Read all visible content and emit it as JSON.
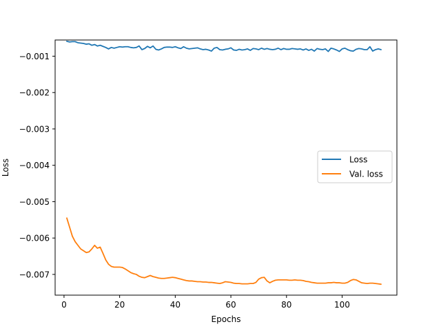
{
  "chart_data": {
    "type": "line",
    "title": "",
    "xlabel": "Epochs",
    "ylabel": "Loss",
    "xlim": [
      -3.2,
      119.7
    ],
    "ylim": [
      -0.00757,
      -0.000555
    ],
    "xticks": [
      {
        "value": 0,
        "label": "0"
      },
      {
        "value": 20,
        "label": "20"
      },
      {
        "value": 40,
        "label": "40"
      },
      {
        "value": 60,
        "label": "60"
      },
      {
        "value": 80,
        "label": "80"
      },
      {
        "value": 100,
        "label": "100"
      }
    ],
    "yticks": [
      {
        "value": -0.001,
        "label": "−0.001"
      },
      {
        "value": -0.002,
        "label": "−0.002"
      },
      {
        "value": -0.003,
        "label": "−0.003"
      },
      {
        "value": -0.004,
        "label": "−0.004"
      },
      {
        "value": -0.005,
        "label": "−0.005"
      },
      {
        "value": -0.006,
        "label": "−0.006"
      },
      {
        "value": -0.007,
        "label": "−0.007"
      }
    ],
    "grid": false,
    "legend_position": "center-right",
    "series": [
      {
        "name": "Loss",
        "color": "#1f77b4",
        "x": [
          1,
          2,
          3,
          4,
          5,
          6,
          7,
          8,
          9,
          10,
          11,
          12,
          13,
          14,
          15,
          16,
          17,
          18,
          19,
          20,
          21,
          22,
          23,
          24,
          25,
          26,
          27,
          28,
          29,
          30,
          31,
          32,
          33,
          34,
          35,
          36,
          37,
          38,
          39,
          40,
          41,
          42,
          43,
          44,
          45,
          46,
          47,
          48,
          49,
          50,
          51,
          52,
          53,
          54,
          55,
          56,
          57,
          58,
          59,
          60,
          61,
          62,
          63,
          64,
          65,
          66,
          67,
          68,
          69,
          70,
          71,
          72,
          73,
          74,
          75,
          76,
          77,
          78,
          79,
          80,
          81,
          82,
          83,
          84,
          85,
          86,
          87,
          88,
          89,
          90,
          91,
          92,
          93,
          94,
          95,
          96,
          97,
          98,
          99,
          100,
          101,
          102,
          103,
          104,
          105,
          106,
          107,
          108,
          109,
          110,
          111,
          112,
          113,
          114
        ],
        "values": [
          -0.00059,
          -0.00061,
          -0.0006,
          -0.0006,
          -0.00063,
          -0.00064,
          -0.00065,
          -0.00067,
          -0.00066,
          -0.0007,
          -0.00068,
          -0.00072,
          -0.0007,
          -0.00073,
          -0.00076,
          -0.0008,
          -0.00076,
          -0.00078,
          -0.00076,
          -0.00074,
          -0.00075,
          -0.00074,
          -0.00074,
          -0.00076,
          -0.00077,
          -0.00076,
          -0.00072,
          -0.00082,
          -0.00079,
          -0.00073,
          -0.00077,
          -0.00072,
          -0.00081,
          -0.00083,
          -0.0008,
          -0.00076,
          -0.00075,
          -0.00075,
          -0.00076,
          -0.00074,
          -0.00077,
          -0.00079,
          -0.00074,
          -0.00078,
          -0.0008,
          -0.00079,
          -0.00078,
          -0.00077,
          -0.0008,
          -0.00082,
          -0.00081,
          -0.00083,
          -0.00086,
          -0.00078,
          -0.00076,
          -0.00082,
          -0.00083,
          -0.00081,
          -0.0008,
          -0.00077,
          -0.00083,
          -0.00084,
          -0.00081,
          -0.00083,
          -0.00082,
          -0.0008,
          -0.00084,
          -0.00079,
          -0.0008,
          -0.00082,
          -0.00078,
          -0.00081,
          -0.00079,
          -0.00081,
          -0.00082,
          -0.00081,
          -0.00078,
          -0.00082,
          -0.00079,
          -0.00081,
          -0.00081,
          -0.00079,
          -0.0008,
          -0.00081,
          -0.0008,
          -0.00083,
          -0.0008,
          -0.00084,
          -0.00081,
          -0.00086,
          -0.00079,
          -0.00081,
          -0.00082,
          -0.0008,
          -0.00087,
          -0.00078,
          -0.0008,
          -0.00083,
          -0.00087,
          -0.0008,
          -0.00078,
          -0.00082,
          -0.00085,
          -0.00086,
          -0.00081,
          -0.00079,
          -0.0008,
          -0.00082,
          -0.00082,
          -0.00074,
          -0.00086,
          -0.00082,
          -0.0008,
          -0.00082
        ]
      },
      {
        "name": "Val. loss",
        "color": "#ff7f0e",
        "x": [
          1,
          2,
          3,
          4,
          5,
          6,
          7,
          8,
          9,
          10,
          11,
          12,
          13,
          14,
          15,
          16,
          17,
          18,
          19,
          20,
          21,
          22,
          23,
          24,
          25,
          26,
          27,
          28,
          29,
          30,
          31,
          32,
          33,
          34,
          35,
          36,
          37,
          38,
          39,
          40,
          41,
          42,
          43,
          44,
          45,
          46,
          47,
          48,
          49,
          50,
          51,
          52,
          53,
          54,
          55,
          56,
          57,
          58,
          59,
          60,
          61,
          62,
          63,
          64,
          65,
          66,
          67,
          68,
          69,
          70,
          71,
          72,
          73,
          74,
          75,
          76,
          77,
          78,
          79,
          80,
          81,
          82,
          83,
          84,
          85,
          86,
          87,
          88,
          89,
          90,
          91,
          92,
          93,
          94,
          95,
          96,
          97,
          98,
          99,
          100,
          101,
          102,
          103,
          104,
          105,
          106,
          107,
          108,
          109,
          110,
          111,
          112,
          113,
          114
        ],
        "values": [
          -0.00545,
          -0.0057,
          -0.00595,
          -0.0061,
          -0.0062,
          -0.0063,
          -0.00635,
          -0.0064,
          -0.00638,
          -0.0063,
          -0.0062,
          -0.00628,
          -0.00625,
          -0.00642,
          -0.0066,
          -0.00672,
          -0.00678,
          -0.0068,
          -0.0068,
          -0.0068,
          -0.00681,
          -0.00685,
          -0.0069,
          -0.00695,
          -0.00698,
          -0.007,
          -0.00705,
          -0.00708,
          -0.00709,
          -0.00706,
          -0.00703,
          -0.00706,
          -0.00708,
          -0.0071,
          -0.00711,
          -0.00711,
          -0.0071,
          -0.00709,
          -0.00708,
          -0.00709,
          -0.00711,
          -0.00713,
          -0.00715,
          -0.00717,
          -0.00718,
          -0.00718,
          -0.00719,
          -0.0072,
          -0.0072,
          -0.00721,
          -0.00721,
          -0.00722,
          -0.00722,
          -0.00723,
          -0.00724,
          -0.00725,
          -0.00723,
          -0.0072,
          -0.00721,
          -0.00722,
          -0.00724,
          -0.00725,
          -0.00725,
          -0.00726,
          -0.00726,
          -0.00726,
          -0.00725,
          -0.00725,
          -0.00722,
          -0.00713,
          -0.00709,
          -0.00708,
          -0.00718,
          -0.00723,
          -0.00719,
          -0.00716,
          -0.00715,
          -0.00715,
          -0.00715,
          -0.00715,
          -0.00716,
          -0.00716,
          -0.00715,
          -0.00716,
          -0.00716,
          -0.00717,
          -0.00719,
          -0.0072,
          -0.00722,
          -0.00723,
          -0.00724,
          -0.00724,
          -0.00724,
          -0.00724,
          -0.00723,
          -0.00723,
          -0.00722,
          -0.00723,
          -0.00723,
          -0.00724,
          -0.00724,
          -0.00722,
          -0.00717,
          -0.00714,
          -0.00715,
          -0.00719,
          -0.00723,
          -0.00724,
          -0.00725,
          -0.00724,
          -0.00724,
          -0.00725,
          -0.00726,
          -0.00727
        ]
      }
    ]
  }
}
